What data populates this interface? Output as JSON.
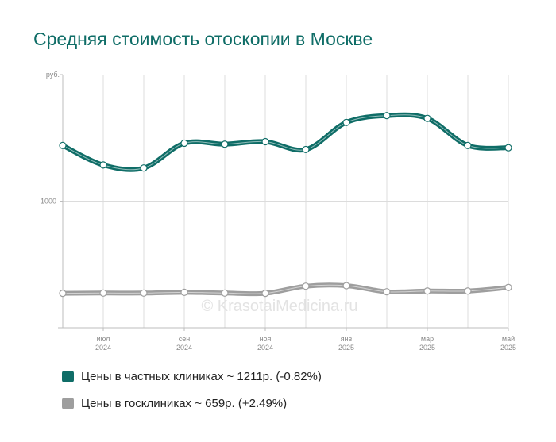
{
  "title": "Средняя стоимость отоскопии в Москве",
  "watermark": "© KrasotaiMedicina.ru",
  "legend": [
    {
      "label": "Цены в частных клиниках ~ 1211р. (-0.82%)",
      "color": "#0f6d67"
    },
    {
      "label": "Цены в госклиниках ~ 659р. (+2.49%)",
      "color": "#9e9e9e"
    }
  ],
  "chart_data": {
    "type": "line",
    "y_unit_label": "руб.",
    "y_ticks": [
      1000
    ],
    "ylim": [
      500,
      1500
    ],
    "x_tick_labels": [
      {
        "month": "июл",
        "year": "2024"
      },
      {
        "month": "сен",
        "year": "2024"
      },
      {
        "month": "ноя",
        "year": "2024"
      },
      {
        "month": "янв",
        "year": "2025"
      },
      {
        "month": "мар",
        "year": "2025"
      },
      {
        "month": "май",
        "year": "2025"
      }
    ],
    "x": [
      "2024-06",
      "2024-07",
      "2024-08",
      "2024-09",
      "2024-10",
      "2024-11",
      "2024-12",
      "2025-01",
      "2025-02",
      "2025-03",
      "2025-04",
      "2025-05"
    ],
    "series": [
      {
        "name": "Цены в частных клиниках",
        "color": "#0f6d67",
        "values": [
          1220,
          1143,
          1131,
          1229,
          1225,
          1235,
          1204,
          1311,
          1338,
          1327,
          1220,
          1211
        ]
      },
      {
        "name": "Цены в госклиниках",
        "color": "#9e9e9e",
        "values": [
          636,
          637,
          637,
          640,
          637,
          636,
          664,
          666,
          642,
          645,
          645,
          659
        ]
      }
    ],
    "grid": true,
    "legend_position": "bottom-left"
  }
}
